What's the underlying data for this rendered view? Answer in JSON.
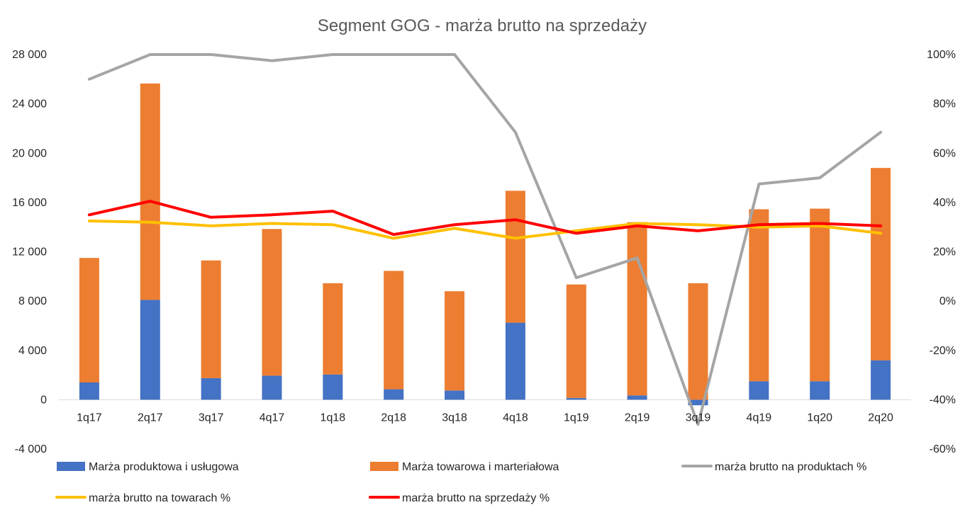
{
  "chart_data": {
    "type": "bar",
    "title": "Segment GOG - marża brutto na sprzedaży",
    "categories": [
      "1q17",
      "2q17",
      "3q17",
      "4q17",
      "1q18",
      "2q18",
      "3q18",
      "4q18",
      "1q19",
      "2q19",
      "3q19",
      "4q19",
      "1q20",
      "2q20"
    ],
    "stacked": true,
    "y_left": {
      "range": [
        -4000,
        28000
      ],
      "ticks": [
        -4000,
        0,
        4000,
        8000,
        12000,
        16000,
        20000,
        24000,
        28000
      ],
      "tick_labels": [
        "-4 000",
        "0",
        "4 000",
        "8 000",
        "12 000",
        "16 000",
        "20 000",
        "24 000",
        "28 000"
      ]
    },
    "y_right": {
      "range": [
        -60,
        100
      ],
      "ticks": [
        -60,
        -40,
        -20,
        0,
        20,
        40,
        60,
        80,
        100
      ],
      "tick_labels": [
        "-60%",
        "-40%",
        "-20%",
        "0%",
        "20%",
        "40%",
        "60%",
        "80%",
        "100%"
      ]
    },
    "grid": false,
    "legend_position": "bottom",
    "series": [
      {
        "name": "Marża produktowa i usługowa",
        "kind": "bar",
        "axis": "left",
        "color": "#4472C4",
        "values": [
          1400,
          8100,
          1750,
          1950,
          2050,
          850,
          750,
          6250,
          150,
          350,
          -450,
          1500,
          1500,
          3200
        ]
      },
      {
        "name": "Marża towarowa i marteriałowa",
        "kind": "bar",
        "axis": "left",
        "color": "#ED7D31",
        "values": [
          10100,
          17550,
          9550,
          11900,
          7400,
          9600,
          8050,
          10700,
          9200,
          14050,
          9450,
          13950,
          14000,
          15600
        ]
      },
      {
        "name": "marża brutto na produktach %",
        "kind": "line",
        "axis": "right",
        "color": "#A5A5A5",
        "values": [
          90,
          100,
          100,
          97.5,
          100,
          100,
          100,
          68.5,
          9.5,
          17.5,
          -50,
          47.5,
          50,
          68.5
        ]
      },
      {
        "name": "marża brutto na towarach %",
        "kind": "line",
        "axis": "right",
        "color": "#FFC000",
        "values": [
          32.5,
          32,
          30.5,
          31.5,
          31,
          25.5,
          29.5,
          25.5,
          28.5,
          31.5,
          31,
          30,
          30.5,
          27.5
        ]
      },
      {
        "name": "marża brutto na sprzedaży %",
        "kind": "line",
        "axis": "right",
        "color": "#FF0000",
        "values": [
          35,
          40.5,
          34,
          35,
          36.5,
          27,
          31,
          33,
          27.5,
          30.5,
          28.5,
          31,
          31.5,
          30.5
        ]
      }
    ]
  }
}
